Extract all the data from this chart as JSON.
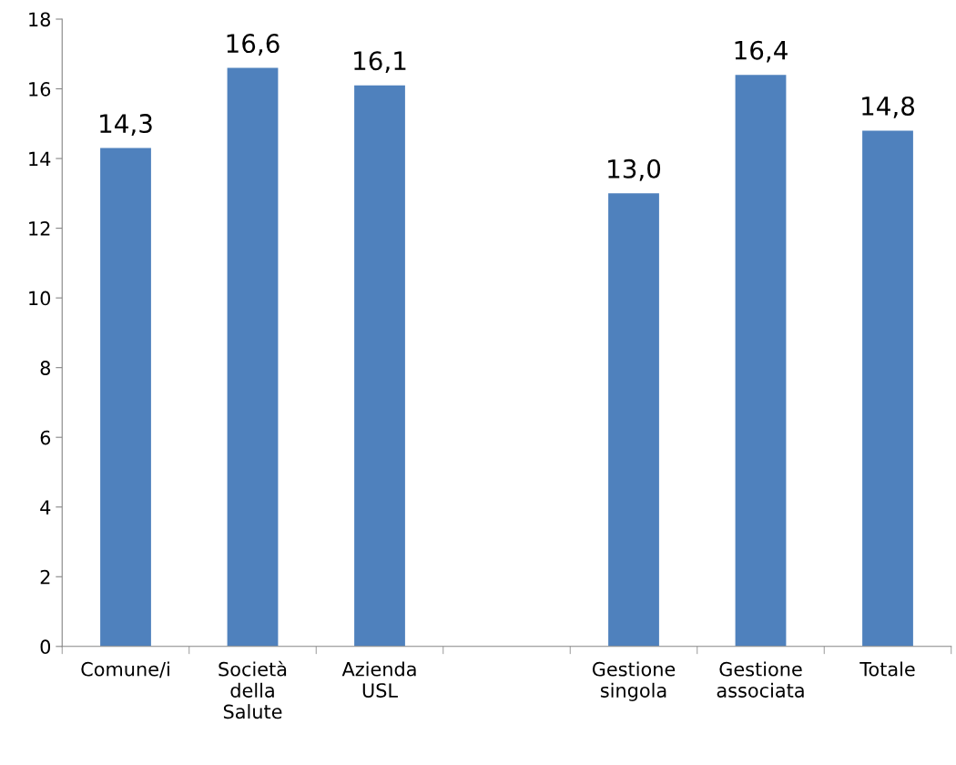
{
  "chart_data": {
    "type": "bar",
    "categories": [
      "Comune/i",
      "Società\ndella\nSalute",
      "Azienda\nUSL",
      null,
      "Gestione\nsingola",
      "Gestione\nassociata",
      "Totale"
    ],
    "values": [
      14.3,
      16.6,
      16.1,
      null,
      13.0,
      16.4,
      14.8
    ],
    "value_labels": [
      "14,3",
      "16,6",
      "16,1",
      null,
      "13,0",
      "16,4",
      "14,8"
    ],
    "color": "#4f81bd",
    "ylim": [
      0,
      18
    ],
    "yticks": [
      0,
      2,
      4,
      6,
      8,
      10,
      12,
      14,
      16,
      18
    ],
    "grid": false,
    "legend": false
  }
}
